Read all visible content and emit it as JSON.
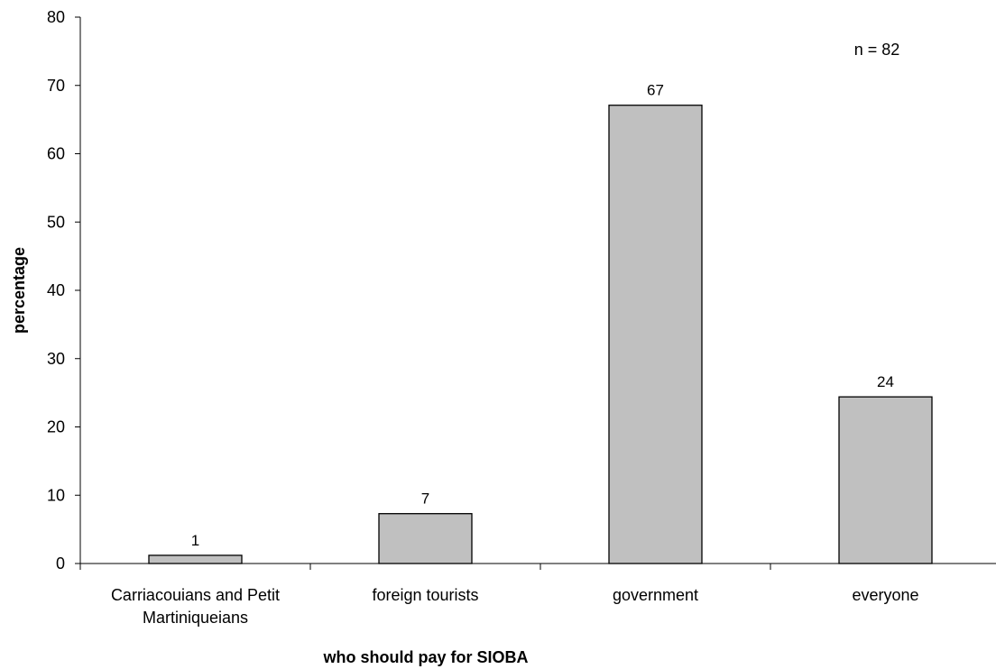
{
  "chart_data": {
    "type": "bar",
    "title": "",
    "categories": [
      [
        "Carriacouians and Petit",
        "Martiniqueians"
      ],
      [
        "foreign tourists"
      ],
      [
        "government"
      ],
      [
        "everyone"
      ]
    ],
    "values": [
      1.2,
      7.3,
      67.1,
      24.4
    ],
    "data_labels": [
      "1",
      "7",
      "67",
      "24"
    ],
    "xlabel": "who should pay for SIOBA",
    "ylabel": "percentage",
    "ylim": [
      0,
      80
    ],
    "yticks": [
      0,
      10,
      20,
      30,
      40,
      50,
      60,
      70,
      80
    ],
    "annotation": "n = 82",
    "grid": false,
    "legend": "none",
    "bar_color": "#c0c0c0",
    "bar_edge_color": "#000000"
  }
}
